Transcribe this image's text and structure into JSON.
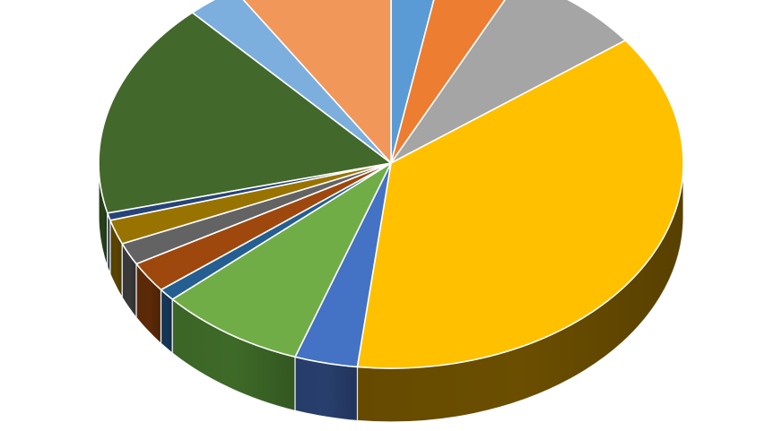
{
  "chart_data": {
    "type": "pie",
    "style": "3d",
    "title": "",
    "legend": "none",
    "data_labels": "none",
    "values": [
      3.0,
      4.5,
      7.8,
      38.3,
      3.6,
      8.4,
      1.0,
      2.5,
      1.8,
      2.0,
      0.6,
      17.6,
      3.0,
      9.3
    ],
    "colors": [
      "#5B9BD5",
      "#ED7D31",
      "#A5A5A5",
      "#FFC000",
      "#4472C4",
      "#70AD47",
      "#255E91",
      "#9E480E",
      "#636363",
      "#997300",
      "#264478",
      "#43682B",
      "#7CAFDD",
      "#F1975A"
    ],
    "side_colors": [
      "#2E5A85",
      "#8C4A1C",
      "#606060",
      "#6B4E00",
      "#283F6E",
      "#3E6A28",
      "#163757",
      "#5C2A08",
      "#3A3A3A",
      "#5A4400",
      "#152745",
      "#27401A",
      "#46678A",
      "#8D5734"
    ],
    "start_angle": "top",
    "direction": "clockwise"
  }
}
